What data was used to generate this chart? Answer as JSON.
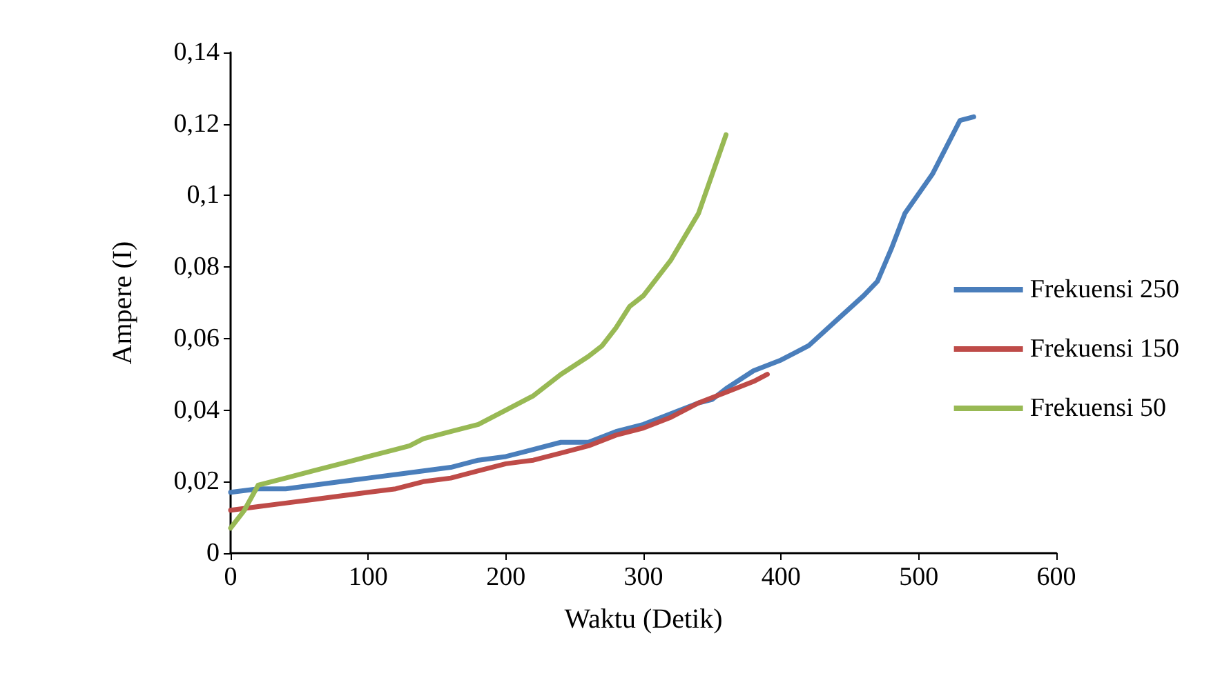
{
  "chart_data": {
    "type": "line",
    "xlabel": "Waktu (Detik)",
    "ylabel": "Ampere (I)",
    "xlim": [
      0,
      600
    ],
    "xticks": [
      0,
      100,
      200,
      300,
      400,
      500,
      600
    ],
    "ylim": [
      0,
      0.14
    ],
    "yticks": [
      {
        "value": 0,
        "label": "0"
      },
      {
        "value": 0.02,
        "label": "0,02"
      },
      {
        "value": 0.04,
        "label": "0,04"
      },
      {
        "value": 0.06,
        "label": "0,06"
      },
      {
        "value": 0.08,
        "label": "0,08"
      },
      {
        "value": 0.1,
        "label": "0,1"
      },
      {
        "value": 0.12,
        "label": "0,12"
      },
      {
        "value": 0.14,
        "label": "0,14"
      }
    ],
    "grid": false,
    "legend": "right",
    "marker": "none",
    "line_style": "solid",
    "series": [
      {
        "name": "Frekuensi 250",
        "color": "#4a7ebb",
        "x": [
          0,
          20,
          40,
          60,
          80,
          100,
          120,
          140,
          160,
          180,
          200,
          220,
          240,
          260,
          280,
          300,
          320,
          340,
          350,
          360,
          380,
          400,
          420,
          440,
          460,
          470,
          480,
          490,
          510,
          530,
          540
        ],
        "values": [
          0.017,
          0.018,
          0.018,
          0.019,
          0.02,
          0.021,
          0.022,
          0.023,
          0.024,
          0.026,
          0.027,
          0.029,
          0.031,
          0.031,
          0.034,
          0.036,
          0.039,
          0.042,
          0.043,
          0.046,
          0.051,
          0.054,
          0.058,
          0.065,
          0.072,
          0.076,
          0.085,
          0.095,
          0.106,
          0.121,
          0.122
        ]
      },
      {
        "name": "Frekuensi 150",
        "color": "#be4b48",
        "x": [
          0,
          20,
          40,
          60,
          80,
          100,
          120,
          140,
          160,
          180,
          200,
          220,
          240,
          260,
          280,
          300,
          320,
          340,
          360,
          380,
          390
        ],
        "values": [
          0.012,
          0.013,
          0.014,
          0.015,
          0.016,
          0.017,
          0.018,
          0.02,
          0.021,
          0.023,
          0.025,
          0.026,
          0.028,
          0.03,
          0.033,
          0.035,
          0.038,
          0.042,
          0.045,
          0.048,
          0.05
        ]
      },
      {
        "name": "Frekuensi 50",
        "color": "#98b954",
        "x": [
          0,
          10,
          20,
          40,
          60,
          80,
          100,
          120,
          130,
          140,
          160,
          180,
          200,
          220,
          240,
          260,
          270,
          280,
          290,
          300,
          320,
          340,
          360
        ],
        "values": [
          0.007,
          0.012,
          0.019,
          0.021,
          0.023,
          0.025,
          0.027,
          0.029,
          0.03,
          0.032,
          0.034,
          0.036,
          0.04,
          0.044,
          0.05,
          0.055,
          0.058,
          0.063,
          0.069,
          0.072,
          0.082,
          0.095,
          0.117
        ]
      }
    ]
  }
}
